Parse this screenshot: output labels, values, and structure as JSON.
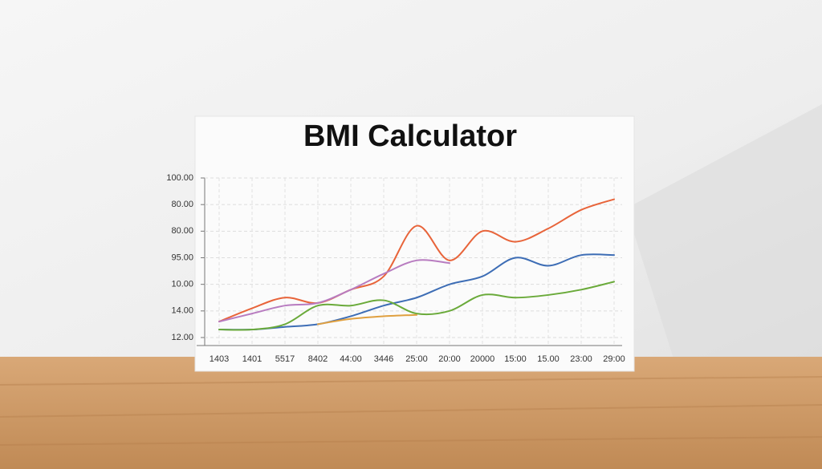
{
  "chart_data": {
    "type": "line",
    "title": "BMI Calculator",
    "categories": [
      "1403",
      "1401",
      "5517",
      "8402",
      "44:00",
      "3446",
      "25:00",
      "20:00",
      "20000",
      "15:00",
      "15.00",
      "23:00",
      "29:00"
    ],
    "ylim": [
      0,
      6
    ],
    "yticks": [
      {
        "value": 0,
        "label": "12.00"
      },
      {
        "value": 1,
        "label": "14.00"
      },
      {
        "value": 2,
        "label": "10.00"
      },
      {
        "value": 3,
        "label": "95.00"
      },
      {
        "value": 4,
        "label": "80.00"
      },
      {
        "value": 5,
        "label": "80.00"
      },
      {
        "value": 6,
        "label": "100.00"
      }
    ],
    "grid": true,
    "series": [
      {
        "color": "#e8643a",
        "values": [
          0.6,
          1.1,
          1.5,
          1.3,
          1.8,
          2.3,
          4.2,
          2.9,
          4.0,
          3.6,
          4.1,
          4.8,
          5.2
        ]
      },
      {
        "color": "#b87cc0",
        "values": [
          0.6,
          0.9,
          1.2,
          1.3,
          1.8,
          2.4,
          2.9,
          2.8,
          null,
          null,
          null,
          null,
          null
        ]
      },
      {
        "color": "#3d6db5",
        "values": [
          0.3,
          0.3,
          0.4,
          0.5,
          0.8,
          1.2,
          1.5,
          2.0,
          2.3,
          3.0,
          2.7,
          3.1,
          3.1
        ]
      },
      {
        "color": "#6aaa3a",
        "values": [
          0.3,
          0.3,
          0.5,
          1.2,
          1.2,
          1.4,
          0.9,
          1.0,
          1.6,
          1.5,
          1.6,
          1.8,
          2.1
        ]
      },
      {
        "color": "#e0a040",
        "values": [
          null,
          null,
          null,
          0.5,
          0.7,
          0.8,
          0.85,
          null,
          null,
          null,
          null,
          null,
          null
        ]
      }
    ]
  }
}
